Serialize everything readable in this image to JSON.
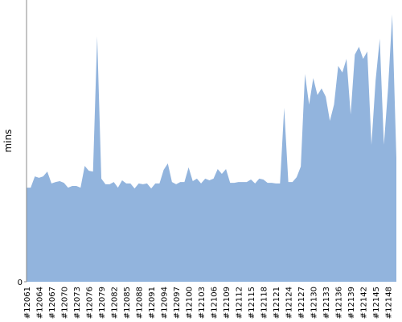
{
  "chart_data": {
    "type": "area",
    "ylabel": "mins",
    "color": "#92b4dd",
    "categories": [
      "#12061",
      null,
      null,
      "#12064",
      null,
      null,
      "#12067",
      null,
      null,
      "#12070",
      null,
      null,
      "#12073",
      null,
      null,
      "#12076",
      null,
      null,
      "#12079",
      null,
      null,
      "#12082",
      null,
      null,
      "#12085",
      null,
      null,
      "#12088",
      null,
      null,
      "#12091",
      null,
      null,
      "#12094",
      null,
      null,
      "#12097",
      null,
      null,
      "#12100",
      null,
      null,
      "#12103",
      null,
      null,
      "#12106",
      null,
      null,
      "#12109",
      null,
      null,
      "#12112",
      null,
      null,
      "#12115",
      null,
      null,
      "#12118",
      null,
      null,
      "#12121",
      null,
      null,
      "#12124",
      null,
      null,
      "#12127",
      null,
      null,
      "#12130",
      null,
      null,
      "#12133",
      null,
      null,
      "#12136",
      null,
      null,
      "#12139",
      null,
      null,
      "#12142",
      null,
      null,
      "#12145",
      null,
      null,
      "#12148",
      null,
      null
    ],
    "values": [
      33.4,
      33.4,
      37.4,
      36.9,
      37.4,
      39.1,
      34.9,
      35.4,
      35.7,
      35.1,
      33.4,
      34,
      34,
      33.4,
      41.1,
      39.4,
      39.1,
      87.1,
      36.6,
      34.6,
      34.6,
      35.4,
      33.4,
      36,
      34.9,
      34.9,
      33.1,
      34.9,
      34.6,
      34.9,
      33.1,
      34.9,
      34.9,
      39.7,
      42,
      35.4,
      34.6,
      35.4,
      35.4,
      40.6,
      35.7,
      36.6,
      34.9,
      36.6,
      36,
      36.6,
      40,
      38.3,
      40,
      35.1,
      35.1,
      35.4,
      35.4,
      35.4,
      36.3,
      34.9,
      36.6,
      36.3,
      35.1,
      35.1,
      34.9,
      34.9,
      61.7,
      35.4,
      35.4,
      37.1,
      40.9,
      73.7,
      62.9,
      72.3,
      66.3,
      68.6,
      65.7,
      57.1,
      62.9,
      76.6,
      74.3,
      79.1,
      59.4,
      80.6,
      83.4,
      79.1,
      81.7,
      48.6,
      71.4,
      86.3,
      48.6,
      68.6,
      94.9,
      44
    ],
    "ylim": [
      0,
      100
    ],
    "yticks": [
      0
    ]
  }
}
